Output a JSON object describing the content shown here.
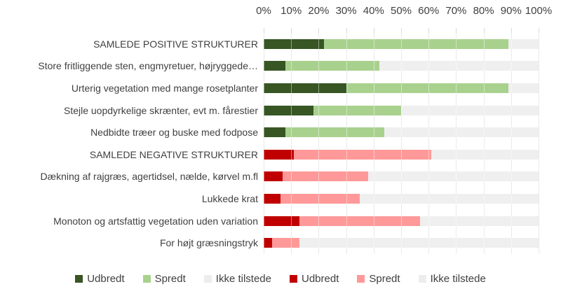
{
  "chart_data": {
    "type": "bar",
    "orientation": "horizontal",
    "stacked": true,
    "title": "",
    "x_axis": {
      "position": "top",
      "min": 0,
      "max": 100,
      "tick_step": 10,
      "ticks": [
        "0%",
        "10%",
        "20%",
        "30%",
        "40%",
        "50%",
        "60%",
        "70%",
        "80%",
        "90%",
        "100%"
      ]
    },
    "grid": true,
    "legend_position": "bottom",
    "series_names": [
      "Udbredt",
      "Spredt",
      "Ikke tilstede"
    ],
    "rows": [
      {
        "label": "SAMLEDE POSITIVE STRUKTURER",
        "group": "positive",
        "udbredt": 22,
        "spredt": 67,
        "ikke_tilstede": 11
      },
      {
        "label": "Store fritliggende sten, engmyretuer, højryggede…",
        "group": "positive",
        "udbredt": 8,
        "spredt": 34,
        "ikke_tilstede": 58
      },
      {
        "label": "Urterig vegetation med mange rosetplanter",
        "group": "positive",
        "udbredt": 30,
        "spredt": 59,
        "ikke_tilstede": 11
      },
      {
        "label": "Stejle uopdyrkelige skrænter, evt m. fårestier",
        "group": "positive",
        "udbredt": 18,
        "spredt": 32,
        "ikke_tilstede": 50
      },
      {
        "label": "Nedbidte træer og buske med fodpose",
        "group": "positive",
        "udbredt": 8,
        "spredt": 36,
        "ikke_tilstede": 56
      },
      {
        "label": "SAMLEDE NEGATIVE STRUKTURER",
        "group": "negative",
        "udbredt": 11,
        "spredt": 50,
        "ikke_tilstede": 39
      },
      {
        "label": "Dækning af rajgræs, agertidsel, nælde, kørvel m.fl",
        "group": "negative",
        "udbredt": 7,
        "spredt": 31,
        "ikke_tilstede": 62
      },
      {
        "label": "Lukkede krat",
        "group": "negative",
        "udbredt": 6,
        "spredt": 29,
        "ikke_tilstede": 65
      },
      {
        "label": "Monoton og artsfattig vegetation uden variation",
        "group": "negative",
        "udbredt": 13,
        "spredt": 44,
        "ikke_tilstede": 43
      },
      {
        "label": "For højt græsningstryk",
        "group": "negative",
        "udbredt": 3,
        "spredt": 10,
        "ikke_tilstede": 87
      }
    ],
    "palette": {
      "positive": {
        "udbredt": "#375623",
        "spredt": "#A9D18E",
        "ikke_tilstede": "#EFEFEF"
      },
      "negative": {
        "udbredt": "#C00000",
        "spredt": "#FF9999",
        "ikke_tilstede": "#EFEFEF"
      }
    },
    "legend": [
      {
        "label": "Udbredt",
        "color": "#375623"
      },
      {
        "label": "Spredt",
        "color": "#A9D18E"
      },
      {
        "label": "Ikke tilstede",
        "color": "#EDEDED"
      },
      {
        "label": "Udbredt",
        "color": "#C00000"
      },
      {
        "label": "Spredt",
        "color": "#FF9999"
      },
      {
        "label": "Ikke tilstede",
        "color": "#EDEDED"
      }
    ]
  },
  "colors": {
    "background": "#FFFFFF",
    "gridline": "#D9D9D9",
    "text": "#404040"
  }
}
